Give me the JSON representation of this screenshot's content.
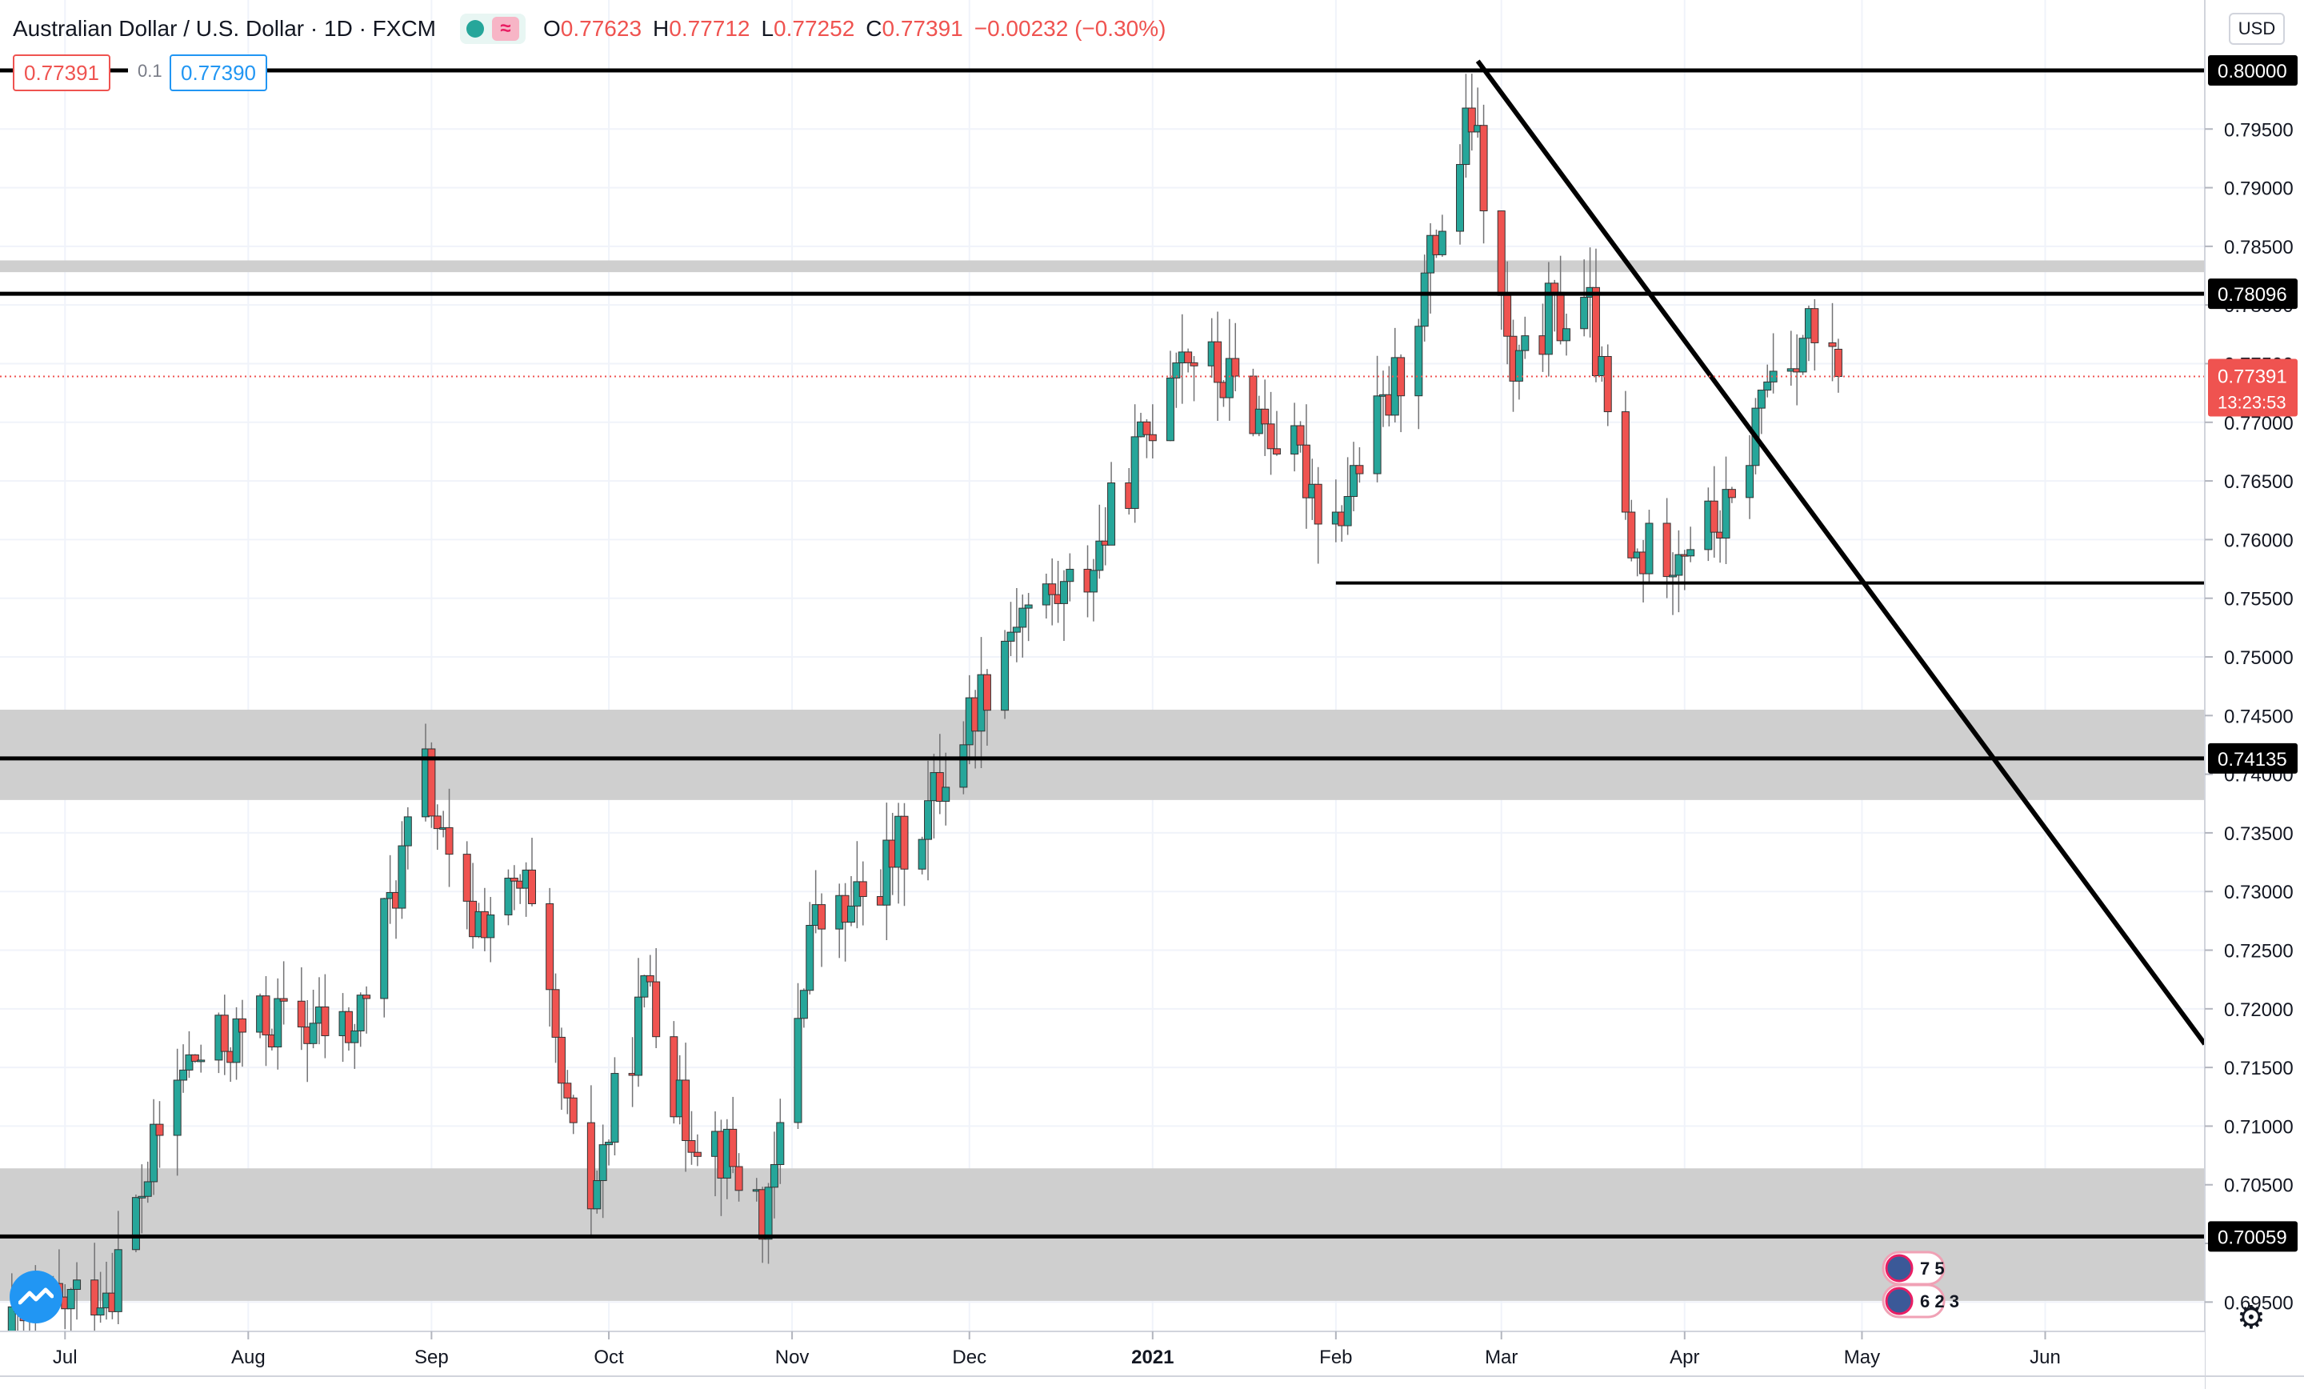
{
  "header": {
    "title": "Australian Dollar / U.S. Dollar · 1D · FXCM",
    "ohlc": [
      {
        "key": "O",
        "value": "0.77623"
      },
      {
        "key": "H",
        "value": "0.77712"
      },
      {
        "key": "L",
        "value": "0.77252"
      },
      {
        "key": "C",
        "value": "0.77391"
      },
      {
        "key": "",
        "value": "−0.00232 (−0.30%)"
      }
    ]
  },
  "trade": {
    "sell_price": "0.77391",
    "spread": "0.1",
    "buy_price": "0.77390"
  },
  "axis": {
    "currency": "USD",
    "current_price": "0.77391",
    "countdown": "13:23:53"
  },
  "event_badges": {
    "row1": "7 5",
    "row2": "6 2 3"
  },
  "colors": {
    "up": "#26a69a",
    "down": "#ef5350",
    "zone": "#cccccc",
    "line": "#000000",
    "price_line": "#ef5350"
  },
  "chart_data": {
    "type": "candlestick",
    "symbol": "AUDUSD",
    "timeframe": "1D",
    "ylim": [
      0.6925,
      0.806
    ],
    "y_ticks": [
      "0.69500",
      "0.70000",
      "0.70500",
      "0.71000",
      "0.71500",
      "0.72000",
      "0.72500",
      "0.73000",
      "0.73500",
      "0.74000",
      "0.74500",
      "0.75000",
      "0.75500",
      "0.76000",
      "0.76500",
      "0.77000",
      "0.77500",
      "0.78000",
      "0.78500",
      "0.79000",
      "0.79500"
    ],
    "x_labels": [
      {
        "label": "Jul",
        "date": "2020-07-01"
      },
      {
        "label": "Aug",
        "date": "2020-08-01"
      },
      {
        "label": "Sep",
        "date": "2020-09-01"
      },
      {
        "label": "Oct",
        "date": "2020-10-01"
      },
      {
        "label": "Nov",
        "date": "2020-11-01"
      },
      {
        "label": "Dec",
        "date": "2020-12-01"
      },
      {
        "label": "2021",
        "date": "2021-01-01",
        "bold": true
      },
      {
        "label": "Feb",
        "date": "2021-02-01"
      },
      {
        "label": "Mar",
        "date": "2021-03-01"
      },
      {
        "label": "Apr",
        "date": "2021-04-01"
      },
      {
        "label": "May",
        "date": "2021-05-01"
      },
      {
        "label": "Jun",
        "date": "2021-06-01"
      }
    ],
    "x_range": [
      "2020-06-20",
      "2021-06-28"
    ],
    "zones": [
      {
        "from": 0.7828,
        "to": 0.7838
      },
      {
        "from": 0.7378,
        "to": 0.7455
      },
      {
        "from": 0.6951,
        "to": 0.7064
      }
    ],
    "horizontal_lines": [
      {
        "price": 0.8,
        "label": "0.80000"
      },
      {
        "price": 0.78096,
        "label": "0.78096"
      },
      {
        "price": 0.74135,
        "label": "0.74135"
      },
      {
        "price": 0.70059,
        "label": "0.70059"
      }
    ],
    "support_line": {
      "price": 0.7563,
      "from": "2021-02-01",
      "to": "2021-06-28"
    },
    "trend_line": {
      "from": {
        "date": "2021-02-25",
        "price": 0.8008
      },
      "to": {
        "date": "2021-06-28",
        "price": 0.717
      }
    },
    "keypoints": [
      {
        "date": "2020-06-22",
        "price": 0.692
      },
      {
        "date": "2020-07-10",
        "price": 0.697
      },
      {
        "date": "2020-07-22",
        "price": 0.715
      },
      {
        "date": "2020-08-05",
        "price": 0.719
      },
      {
        "date": "2020-08-20",
        "price": 0.718
      },
      {
        "date": "2020-09-01",
        "price": 0.74
      },
      {
        "date": "2020-09-07",
        "price": 0.727
      },
      {
        "date": "2020-09-18",
        "price": 0.73
      },
      {
        "date": "2020-09-28",
        "price": 0.702
      },
      {
        "date": "2020-10-09",
        "price": 0.723
      },
      {
        "date": "2020-10-14",
        "price": 0.711
      },
      {
        "date": "2020-10-20",
        "price": 0.709
      },
      {
        "date": "2020-10-29",
        "price": 0.702
      },
      {
        "date": "2020-11-05",
        "price": 0.727
      },
      {
        "date": "2020-11-12",
        "price": 0.728
      },
      {
        "date": "2020-11-25",
        "price": 0.737
      },
      {
        "date": "2020-12-10",
        "price": 0.754
      },
      {
        "date": "2020-12-21",
        "price": 0.756
      },
      {
        "date": "2021-01-01",
        "price": 0.769
      },
      {
        "date": "2021-01-06",
        "price": 0.777
      },
      {
        "date": "2021-01-18",
        "price": 0.772
      },
      {
        "date": "2021-01-29",
        "price": 0.765
      },
      {
        "date": "2021-02-01",
        "price": 0.761
      },
      {
        "date": "2021-02-12",
        "price": 0.773
      },
      {
        "date": "2021-02-25",
        "price": 0.796
      },
      {
        "date": "2021-03-04",
        "price": 0.773
      },
      {
        "date": "2021-03-10",
        "price": 0.779
      },
      {
        "date": "2021-03-17",
        "price": 0.779
      },
      {
        "date": "2021-03-24",
        "price": 0.758
      },
      {
        "date": "2021-04-01",
        "price": 0.76
      },
      {
        "date": "2021-04-10",
        "price": 0.762
      },
      {
        "date": "2021-04-16",
        "price": 0.774
      },
      {
        "date": "2021-04-23",
        "price": 0.778
      },
      {
        "date": "2021-04-27",
        "price": 0.7739
      }
    ],
    "last_candle": {
      "open": 0.77623,
      "high": 0.77712,
      "low": 0.77252,
      "close": 0.77391
    }
  }
}
